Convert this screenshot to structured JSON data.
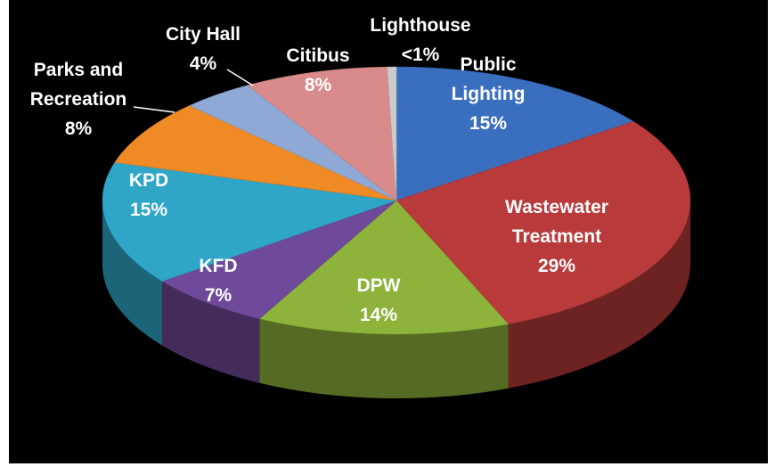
{
  "chart_data": {
    "type": "pie",
    "categories": [
      "Public Lighting",
      "Wastewater Treatment",
      "DPW",
      "KFD",
      "KPD",
      "Parks and Recreation",
      "City Hall",
      "Citibus",
      "Lighthouse"
    ],
    "values": [
      15,
      29,
      14,
      7,
      15,
      8,
      4,
      8,
      0.5
    ],
    "value_labels": [
      "15%",
      "29%",
      "14%",
      "7%",
      "15%",
      "8%",
      "4%",
      "8%",
      "<1%"
    ],
    "colors": [
      "#3a6fbf",
      "#b83a3a",
      "#8db33a",
      "#6f4a9a",
      "#2fa6c8",
      "#f08a24",
      "#8fa9d6",
      "#d98a8a",
      "#cccccc"
    ]
  }
}
